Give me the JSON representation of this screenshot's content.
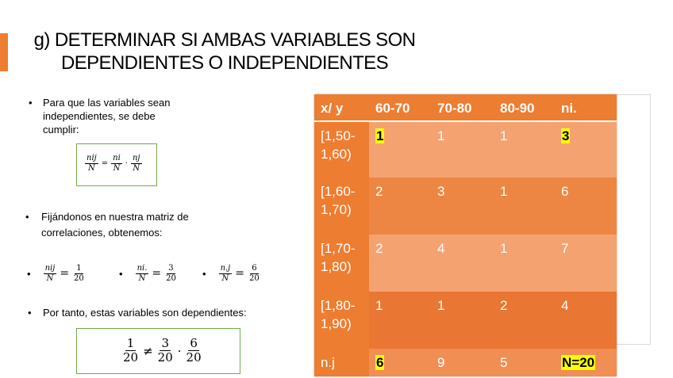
{
  "slide": {
    "title_line1": "g) DETERMINAR SI AMBAS VARIABLES SON",
    "title_line2": "DEPENDIENTES O INDEPENDIENTES",
    "bullet_dot": "•",
    "bullet1": "Para que las variables sean independientes, se debe cumplir:",
    "bullet2": "Fijándonos en nuestra matriz de correlaciones, obtenemos:",
    "bullet3": "Por tanto, estas variables son dependientes:",
    "formula1": {
      "a_num": "nij",
      "a_den": "N",
      "eq": "=",
      "b_num": "ni",
      "b_den": "N",
      "dot": "·",
      "c_num": "nj",
      "c_den": "N"
    },
    "values": [
      {
        "num": "nij",
        "op": "=",
        "vnum": "1",
        "vden": "20",
        "den": "N"
      },
      {
        "num": "ni.",
        "op": "=",
        "vnum": "3",
        "vden": "20",
        "den": "N"
      },
      {
        "num": "n.j",
        "op": "=",
        "vnum": "6",
        "vden": "20",
        "den": "N"
      }
    ],
    "conclusion": {
      "a_num": "1",
      "a_den": "20",
      "neq": "≠",
      "b_num": "3",
      "b_den": "20",
      "dot": "·",
      "c_num": "6",
      "c_den": "20"
    },
    "accent_color": "#ed7d31",
    "box_border_color": "#70ad47"
  },
  "table": {
    "headers": [
      "x/ y",
      "60-70",
      "70-80",
      "80-90",
      "ni."
    ],
    "rows": [
      [
        "[1,50-1,60)",
        "1",
        "1",
        "1",
        "3"
      ],
      [
        "[1,60-1,70)",
        "2",
        "3",
        "1",
        "6"
      ],
      [
        "[1,70-1,80)",
        "2",
        "4",
        "1",
        "7"
      ],
      [
        "[1,80-1,90)",
        "1",
        "1",
        "2",
        "4"
      ],
      [
        "n.j",
        "6",
        "9",
        "5",
        "N=20"
      ]
    ]
  }
}
